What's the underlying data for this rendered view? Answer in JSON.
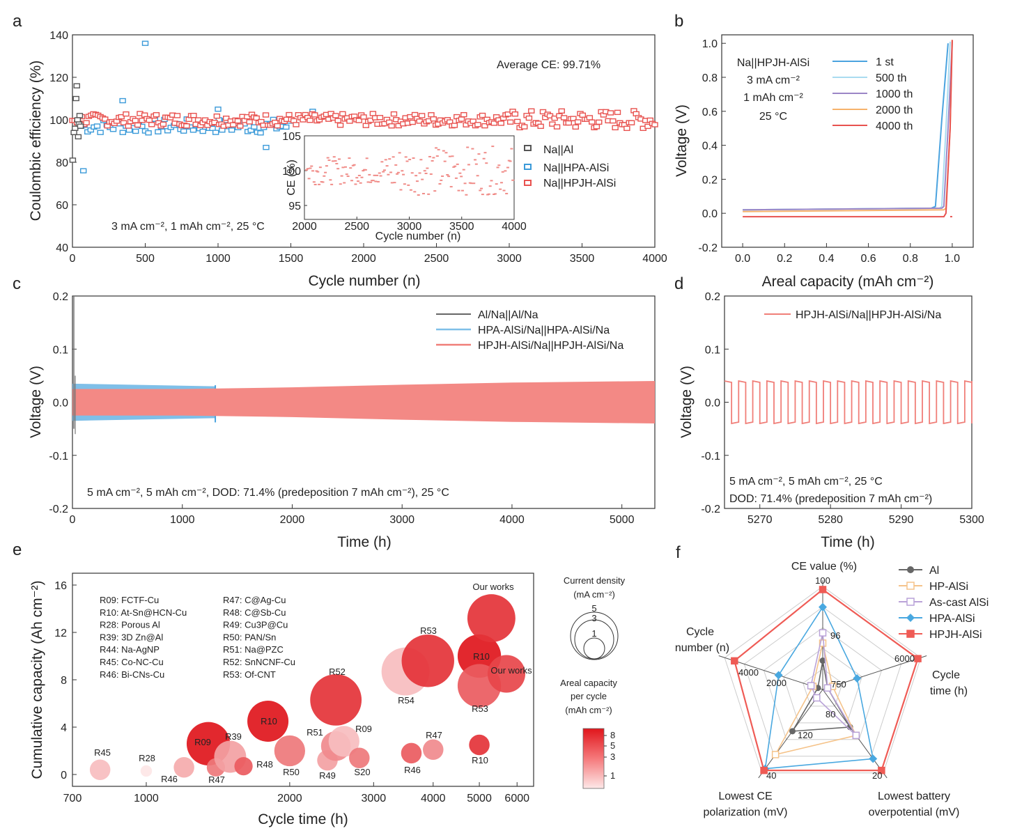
{
  "panels": {
    "a": {
      "letter": "a",
      "title_note": "Average CE: 99.71%",
      "condition": "3 mA cm⁻², 1 mAh cm⁻², 25 °C",
      "xlabel": "Cycle number (n)",
      "ylabel": "Coulombic efficiency (%)",
      "xlim": [
        0,
        4000
      ],
      "ylim": [
        40,
        140
      ],
      "xticks": [
        "0",
        "500",
        "1000",
        "1500",
        "2000",
        "2500",
        "3000",
        "3500",
        "4000"
      ],
      "yticks": [
        "40",
        "60",
        "80",
        "100",
        "120",
        "140"
      ],
      "legend": [
        "Na||Al",
        "Na||HPA-AlSi",
        "Na||HPJH-AlSi"
      ],
      "colors": {
        "Al": "#555555",
        "HPA": "#3a9ad9",
        "HPJH": "#e8524f"
      },
      "inset": {
        "xlabel": "Cycle number (n)",
        "ylabel": "CE (%)",
        "xlim": [
          2000,
          4000
        ],
        "ylim": [
          93,
          105
        ],
        "xticks": [
          "2000",
          "2500",
          "3000",
          "3500",
          "4000"
        ],
        "yticks": [
          "95",
          "100",
          "105"
        ]
      }
    },
    "b": {
      "letter": "b",
      "xlabel": "Areal capacity (mAh cm⁻²)",
      "ylabel": "Voltage (V)",
      "xlim": [
        -0.1,
        1.1
      ],
      "ylim": [
        -0.2,
        1.05
      ],
      "xticks": [
        "0.0",
        "0.2",
        "0.4",
        "0.6",
        "0.8",
        "1.0"
      ],
      "yticks": [
        "-0.2",
        "0.0",
        "0.2",
        "0.4",
        "0.6",
        "0.8",
        "1.0"
      ],
      "note": [
        "Na||HPJH-AlSi",
        "3 mA cm⁻²",
        "1 mAh cm⁻²",
        "25 °C"
      ],
      "legend": [
        "1 st",
        "500 th",
        "1000 th",
        "2000 th",
        "4000 th"
      ],
      "colors": [
        "#4aa3df",
        "#a9dbf0",
        "#9b86c6",
        "#f6b26b",
        "#e8524f"
      ]
    },
    "c": {
      "letter": "c",
      "xlabel": "Time (h)",
      "ylabel": "Voltage (V)",
      "xlim": [
        0,
        5300
      ],
      "ylim": [
        -0.2,
        0.2
      ],
      "xticks": [
        "0",
        "1000",
        "2000",
        "3000",
        "4000",
        "5000"
      ],
      "yticks": [
        "-0.2",
        "-0.1",
        "0.0",
        "0.1",
        "0.2"
      ],
      "legend": [
        "Al/Na||Al/Na",
        "HPA-AlSi/Na||HPA-AlSi/Na",
        "HPJH-AlSi/Na||HPJH-AlSi/Na"
      ],
      "condition": "5 mA cm⁻², 5 mAh cm⁻², DOD: 71.4% (predeposition 7 mAh cm⁻²), 25 °C"
    },
    "d": {
      "letter": "d",
      "xlabel": "Time (h)",
      "ylabel": "Voltage (V)",
      "xlim": [
        5265,
        5300
      ],
      "ylim": [
        -0.2,
        0.2
      ],
      "xticks": [
        "5270",
        "5280",
        "5290",
        "5300"
      ],
      "yticks": [
        "-0.2",
        "-0.1",
        "0.0",
        "0.1",
        "0.2"
      ],
      "legend": [
        "HPJH-AlSi/Na||HPJH-AlSi/Na"
      ],
      "condition1": "5 mA cm⁻², 5 mAh cm⁻², 25 °C",
      "condition2": "DOD: 71.4% (predeposition 7 mAh cm⁻²)"
    },
    "e": {
      "letter": "e",
      "xlabel": "Cycle time (h)",
      "ylabel": "Cumulative capacity (Ah cm⁻²)",
      "xticks": [
        "700",
        "1000",
        "2000",
        "3000",
        "4000",
        "5000",
        "6000"
      ],
      "yticks": [
        "0",
        "4",
        "8",
        "12",
        "16"
      ],
      "refs_left": [
        "R09: FCTF-Cu",
        "R10: At-Sn@HCN-Cu",
        "R28: Porous Al",
        "R39: 3D Zn@Al",
        "R44: Na-AgNP",
        "R45: Co-NC-Cu",
        "R46: Bi-CNs-Cu"
      ],
      "refs_right": [
        "R47: C@Ag-Cu",
        "R48: C@Sb-Cu",
        "R49: Cu3P@Cu",
        "R50: PAN/Sn",
        "R51: Na@PZC",
        "R52: SnNCNF-Cu",
        "R53: Of-CNT"
      ],
      "size_legend_title": [
        "Current density",
        "(mA cm⁻²)"
      ],
      "size_legend_values": [
        "5",
        "3",
        "1"
      ],
      "color_legend_title": [
        "Areal capacity",
        "per cycle",
        "(mAh cm⁻²)"
      ],
      "color_legend_ticks": [
        "8",
        "5",
        "3",
        "1"
      ]
    },
    "f": {
      "letter": "f",
      "axes": [
        "CE value (%)",
        "Cycle time (h)",
        "Lowest battery overpotential (mV)",
        "Lowest CE polarization (mV)",
        "Cycle number (n)"
      ],
      "axis_labels_split": {
        "ce": "CE value (%)",
        "time": [
          "Cycle",
          "time (h)"
        ],
        "batt": [
          "Lowest battery",
          "overpotential (mV)"
        ],
        "pol": [
          "Lowest CE",
          "polarization (mV)"
        ],
        "num": [
          "Cycle",
          "number (n)"
        ]
      },
      "ticks": {
        "ce": [
          "100",
          "96"
        ],
        "time": [
          "6000",
          "750"
        ],
        "batt": [
          "20",
          "80"
        ],
        "pol": [
          "40",
          "120"
        ],
        "num": [
          "4000",
          "2000"
        ]
      },
      "legend": [
        "Al",
        "HP-AlSi",
        "As-cast AlSi",
        "HPA-AlSi",
        "HPJH-AlSi"
      ],
      "colors": [
        "#666666",
        "#f5c38a",
        "#b9a2d8",
        "#49a8e0",
        "#ef5b55"
      ]
    }
  },
  "chart_data": [
    {
      "type": "scatter",
      "panel": "a",
      "title": "",
      "xlabel": "Cycle number (n)",
      "ylabel": "Coulombic efficiency (%)",
      "xlim": [
        0,
        4000
      ],
      "ylim": [
        40,
        140
      ],
      "series": [
        {
          "name": "Na||Al",
          "points": [
            [
              2,
              81
            ],
            [
              10,
              94
            ],
            [
              18,
              96
            ],
            [
              25,
              110
            ],
            [
              30,
              116
            ],
            [
              35,
              100
            ],
            [
              40,
              92
            ],
            [
              45,
              98
            ],
            [
              50,
              102
            ],
            [
              55,
              97
            ]
          ]
        },
        {
          "name": "Na||HPA-AlSi",
          "range": [
            60,
            1500
          ],
          "mean": 99,
          "outliers": [
            [
              75,
              76
            ],
            [
              345,
              109
            ],
            [
              500,
              136
            ],
            [
              1330,
              87
            ],
            [
              1000,
              105
            ],
            [
              1650,
              104
            ]
          ]
        },
        {
          "name": "Na||HPJH-AlSi",
          "range": [
            0,
            4000
          ],
          "mean": 100,
          "average_ce": 99.71
        }
      ]
    },
    {
      "type": "line",
      "panel": "b",
      "xlabel": "Areal capacity (mAh cm⁻²)",
      "ylabel": "Voltage (V)",
      "xlim": [
        -0.1,
        1.1
      ],
      "ylim": [
        -0.2,
        1.05
      ],
      "series": [
        {
          "name": "1 st",
          "x": [
            0.0,
            0.9,
            0.92,
            0.95,
            0.98
          ],
          "y": [
            0.02,
            0.03,
            0.04,
            0.55,
            1.0
          ]
        },
        {
          "name": "500 th",
          "x": [
            0.0,
            0.94,
            0.95,
            0.97,
            0.99
          ],
          "y": [
            0.02,
            0.03,
            0.04,
            0.5,
            1.01
          ]
        },
        {
          "name": "1000 th",
          "x": [
            0.0,
            0.95,
            0.96,
            0.98,
            1.0
          ],
          "y": [
            0.02,
            0.03,
            0.04,
            0.5,
            1.01
          ]
        },
        {
          "name": "2000 th",
          "x": [
            0.0,
            0.96,
            0.97,
            0.99,
            1.0
          ],
          "y": [
            0.01,
            0.02,
            0.03,
            0.5,
            1.02
          ]
        },
        {
          "name": "4000 th",
          "x": [
            0.0,
            0.96,
            0.97,
            0.99,
            1.0
          ],
          "y": [
            -0.02,
            -0.02,
            0.0,
            0.5,
            1.02
          ]
        }
      ]
    },
    {
      "type": "area",
      "panel": "c",
      "xlabel": "Time (h)",
      "ylabel": "Voltage (V)",
      "xlim": [
        0,
        5300
      ],
      "ylim": [
        -0.2,
        0.2
      ],
      "series": [
        {
          "name": "Al/Na||Al/Na",
          "x": [
            0,
            20
          ],
          "amplitude": [
            0.2,
            0.03
          ]
        },
        {
          "name": "HPA-AlSi/Na||HPA-AlSi/Na",
          "x": [
            0,
            1300
          ],
          "amplitude": [
            0.035,
            0.03
          ]
        },
        {
          "name": "HPJH-AlSi/Na||HPJH-AlSi/Na",
          "x": [
            0,
            1000,
            2000,
            3000,
            4000,
            5300
          ],
          "amplitude": [
            0.025,
            0.025,
            0.028,
            0.033,
            0.037,
            0.04
          ]
        }
      ]
    },
    {
      "type": "line",
      "panel": "d",
      "xlabel": "Time (h)",
      "ylabel": "Voltage (V)",
      "xlim": [
        5265,
        5300
      ],
      "ylim": [
        -0.2,
        0.2
      ],
      "series": [
        {
          "name": "HPJH-AlSi/Na||HPJH-AlSi/Na",
          "period_h": 2,
          "high": 0.04,
          "low": -0.04,
          "start": 5265
        }
      ]
    },
    {
      "type": "scatter",
      "panel": "e",
      "xlabel": "Cycle time (h)",
      "ylabel": "Cumulative capacity (Ah cm⁻²)",
      "xscale": "log",
      "xlim": [
        700,
        6500
      ],
      "ylim": [
        -1,
        17
      ],
      "points": [
        {
          "label": "R45",
          "x": 800,
          "y": 0.4,
          "current": 1.8,
          "areal": 1.5
        },
        {
          "label": "R28",
          "x": 1000,
          "y": 0.3,
          "current": 1.0,
          "areal": 1.0
        },
        {
          "label": "R46",
          "x": 1200,
          "y": 0.6,
          "current": 1.8,
          "areal": 1.8
        },
        {
          "label": "R09",
          "x": 1350,
          "y": 2.6,
          "current": 3.8,
          "areal": 8
        },
        {
          "label": "R47",
          "x": 1400,
          "y": 0.6,
          "current": 1.6,
          "areal": 3
        },
        {
          "label": "R39",
          "x": 1500,
          "y": 1.5,
          "current": 2.8,
          "areal": 2
        },
        {
          "label": "R48",
          "x": 1600,
          "y": 0.7,
          "current": 1.6,
          "areal": 4
        },
        {
          "label": "R10",
          "x": 1800,
          "y": 4.5,
          "current": 3.6,
          "areal": 8
        },
        {
          "label": "R50",
          "x": 2000,
          "y": 2.0,
          "current": 2.7,
          "areal": 3
        },
        {
          "label": "R49",
          "x": 2400,
          "y": 1.2,
          "current": 1.8,
          "areal": 2
        },
        {
          "label": "R51",
          "x": 2500,
          "y": 2.4,
          "current": 2.6,
          "areal": 2.5
        },
        {
          "label": "R52",
          "x": 2500,
          "y": 6.3,
          "current": 4.5,
          "areal": 6
        },
        {
          "label": "R09",
          "x": 2600,
          "y": 2.8,
          "current": 2.7,
          "areal": 1.5
        },
        {
          "label": "S20",
          "x": 2800,
          "y": 1.4,
          "current": 1.8,
          "areal": 3
        },
        {
          "label": "R54",
          "x": 3500,
          "y": 8.7,
          "current": 4.2,
          "areal": 1.5
        },
        {
          "label": "R46",
          "x": 3600,
          "y": 1.8,
          "current": 1.8,
          "areal": 4
        },
        {
          "label": "R53",
          "x": 3900,
          "y": 9.6,
          "current": 4.6,
          "areal": 6
        },
        {
          "label": "R47",
          "x": 4000,
          "y": 2.1,
          "current": 1.8,
          "areal": 2.5
        },
        {
          "label": "R10",
          "x": 5000,
          "y": 2.5,
          "current": 1.8,
          "areal": 6
        },
        {
          "label": "R10",
          "x": 5000,
          "y": 10.0,
          "current": 3.8,
          "areal": 8
        },
        {
          "label": "R53",
          "x": 5000,
          "y": 7.5,
          "current": 3.8,
          "areal": 4
        },
        {
          "label": "Our works",
          "x": 5300,
          "y": 13.2,
          "current": 4.2,
          "areal": 6
        },
        {
          "label": "Our works",
          "x": 5700,
          "y": 8.5,
          "current": 3.3,
          "areal": 5
        }
      ]
    },
    {
      "type": "radar",
      "panel": "f",
      "axes": [
        "CE value (%)",
        "Cycle time (h)",
        "Lowest battery overpotential (mV)",
        "Lowest CE polarization (mV)",
        "Cycle number (n)"
      ],
      "series": [
        {
          "name": "Al",
          "values": [
            0.28,
            0.05,
            0.45,
            0.5,
            0.05
          ]
        },
        {
          "name": "HP-AlSi",
          "values": [
            0.45,
            0.1,
            0.55,
            0.78,
            0.1
          ]
        },
        {
          "name": "As-cast AlSi",
          "values": [
            0.55,
            0.05,
            0.55,
            0.1,
            0.12
          ]
        },
        {
          "name": "HPA-AlSi",
          "values": [
            0.8,
            0.35,
            0.83,
            0.95,
            0.45
          ]
        },
        {
          "name": "HPJH-AlSi",
          "values": [
            0.97,
            0.97,
            0.97,
            0.97,
            0.9
          ]
        }
      ]
    }
  ]
}
